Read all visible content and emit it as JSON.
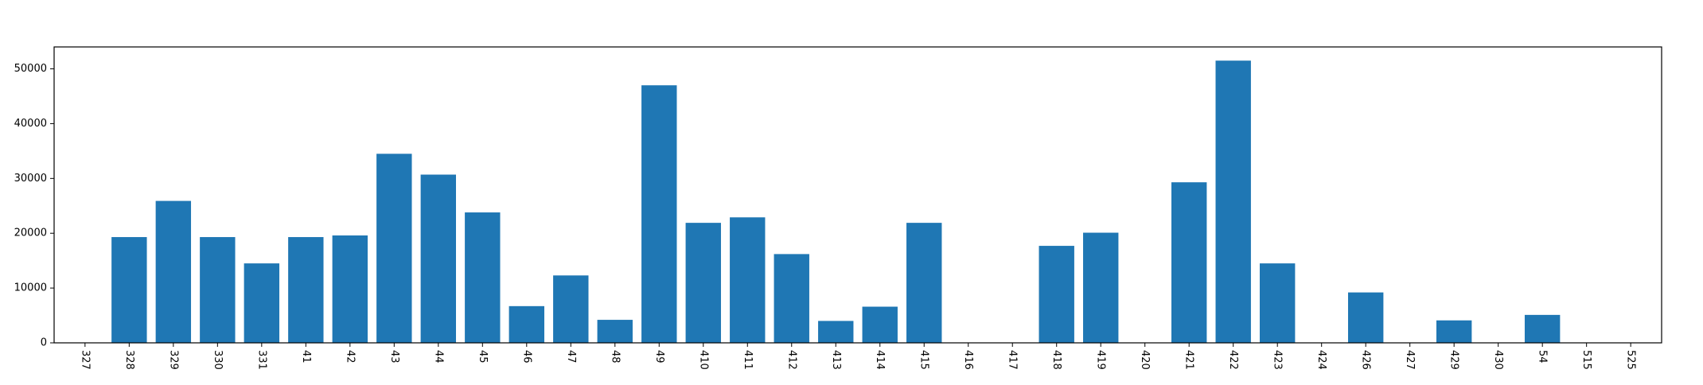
{
  "chart_data": {
    "type": "bar",
    "title": "",
    "xlabel": "",
    "ylabel": "",
    "categories": [
      "327",
      "328",
      "329",
      "330",
      "331",
      "41",
      "42",
      "43",
      "44",
      "45",
      "46",
      "47",
      "48",
      "49",
      "410",
      "411",
      "412",
      "413",
      "414",
      "415",
      "416",
      "417",
      "418",
      "419",
      "420",
      "421",
      "422",
      "423",
      "424",
      "426",
      "427",
      "429",
      "430",
      "54",
      "515",
      "525"
    ],
    "values": [
      0,
      19300,
      25900,
      19300,
      14500,
      19300,
      19600,
      34500,
      30700,
      23800,
      6700,
      12300,
      4200,
      47000,
      21900,
      22900,
      16200,
      4000,
      6600,
      21900,
      0,
      0,
      17700,
      20100,
      0,
      29300,
      51500,
      14500,
      0,
      9200,
      0,
      4100,
      0,
      5100,
      0,
      0
    ],
    "ylim": [
      0,
      54000
    ],
    "yticks": [
      0,
      10000,
      20000,
      30000,
      40000,
      50000
    ],
    "bar_color": "#1f77b4",
    "grid": false,
    "x_tick_rotation": "vertical"
  }
}
